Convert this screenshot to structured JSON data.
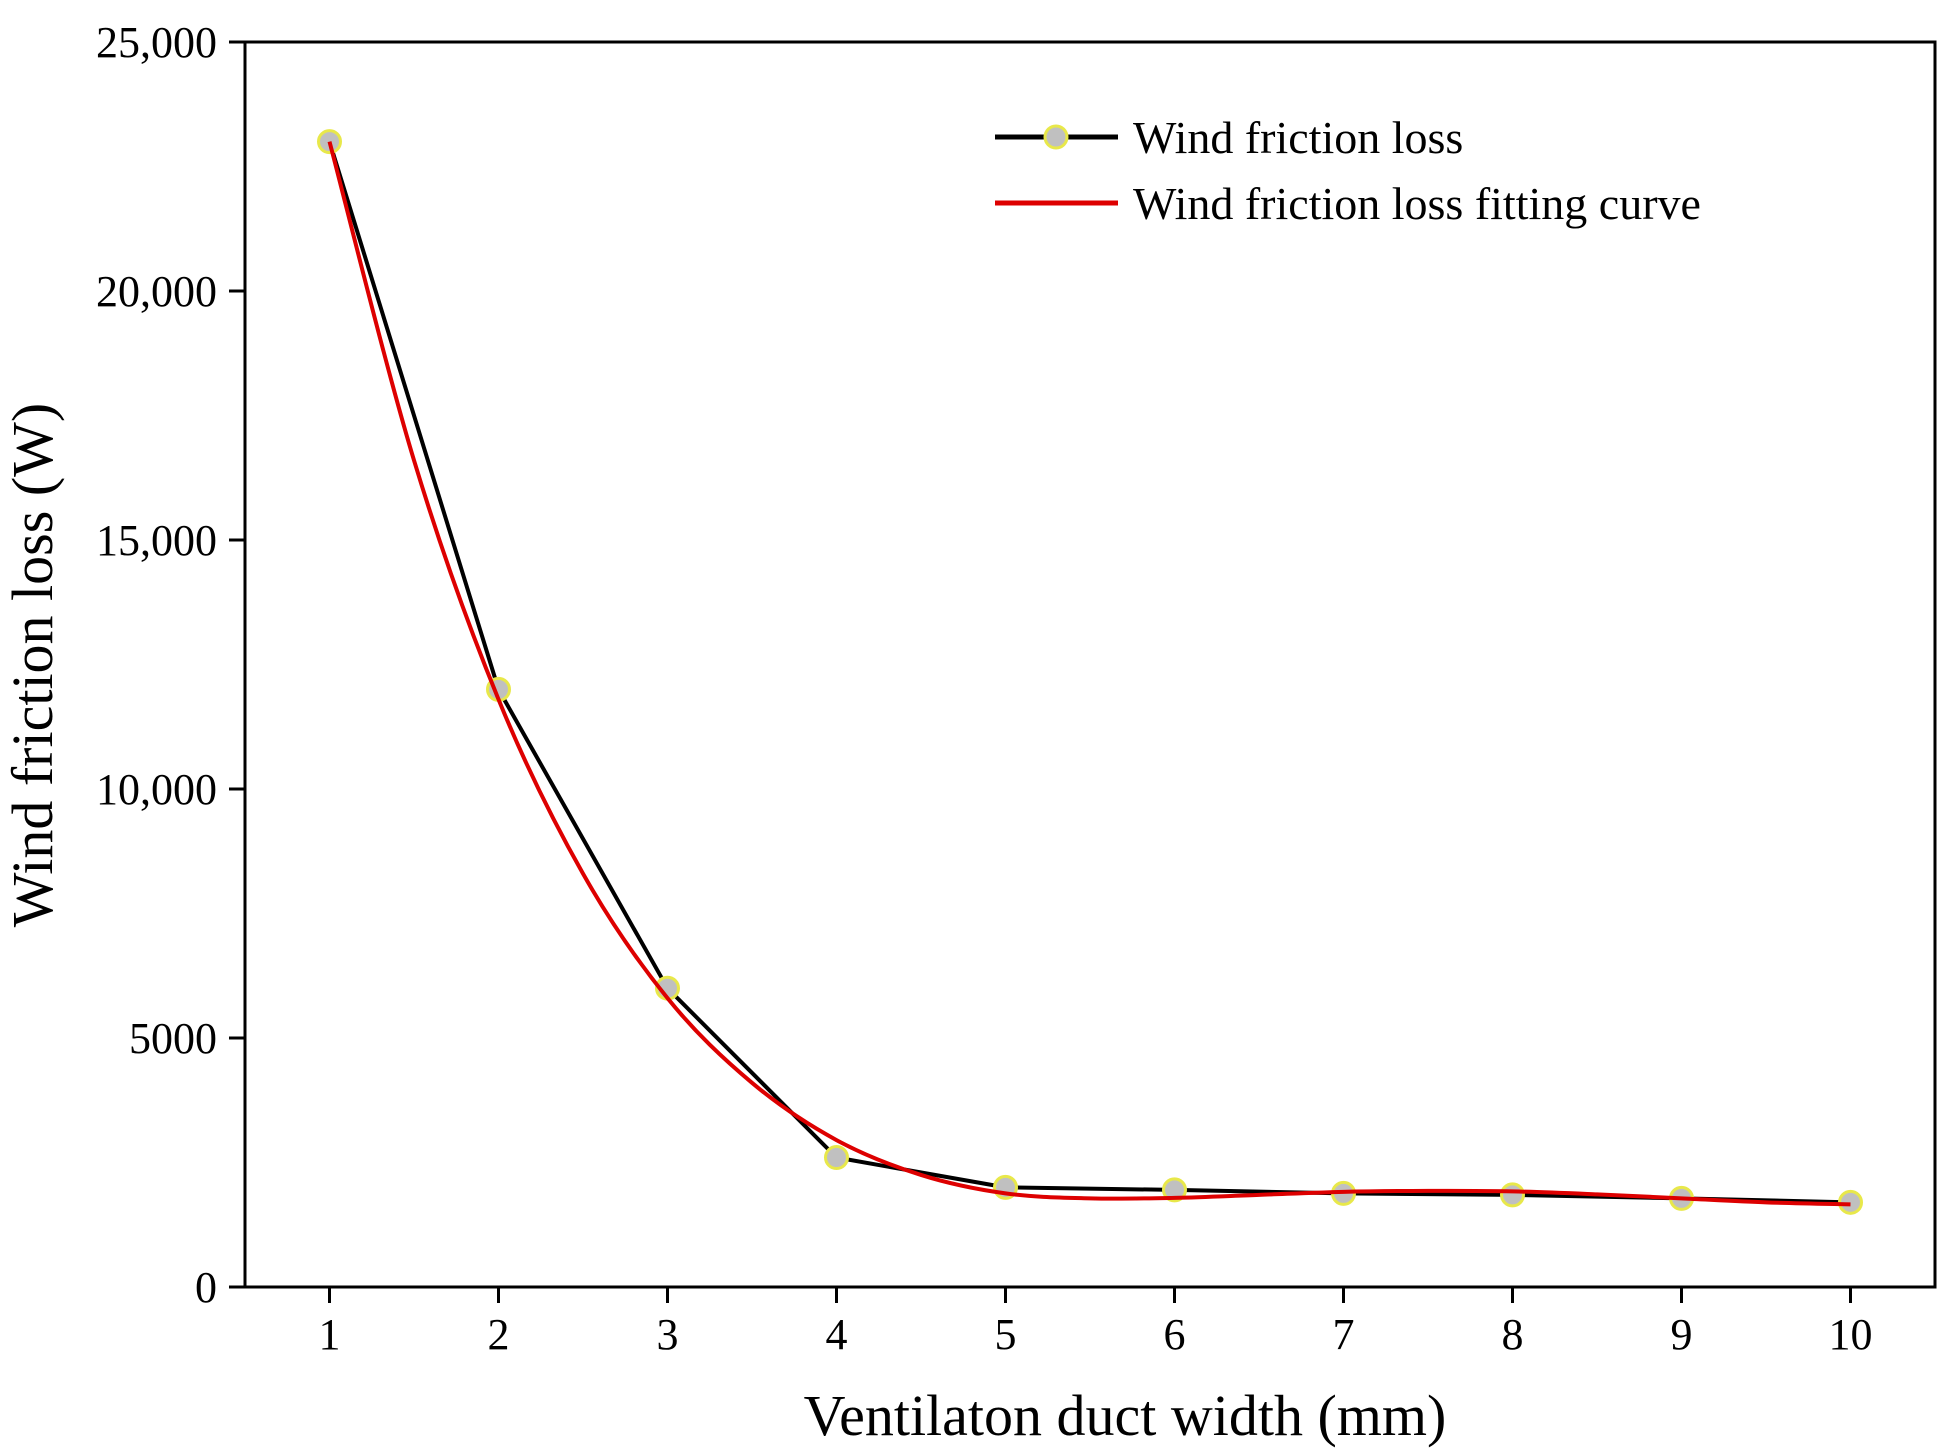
{
  "chart_data": {
    "type": "line",
    "title": "",
    "xlabel": "Ventilaton duct width (mm)",
    "ylabel": "Wind friction loss (W)",
    "xlim": [
      0.5,
      10.5
    ],
    "ylim": [
      0,
      25000
    ],
    "x_ticks": [
      1,
      2,
      3,
      4,
      5,
      6,
      7,
      8,
      9,
      10
    ],
    "x_tick_labels": [
      "1",
      "2",
      "3",
      "4",
      "5",
      "6",
      "7",
      "8",
      "9",
      "10"
    ],
    "y_ticks": [
      0,
      5000,
      10000,
      15000,
      20000,
      25000
    ],
    "y_tick_labels": [
      "0",
      "5000",
      "10,000",
      "15,000",
      "20,000",
      "25,000"
    ],
    "grid": false,
    "legend_position": "top-right",
    "series": [
      {
        "name": "Wind friction loss",
        "color": "#000000",
        "marker_fill": "#c0c0c0",
        "marker_edge": "#e8e84a",
        "x": [
          1,
          2,
          3,
          4,
          5,
          6,
          7,
          8,
          9,
          10
        ],
        "values": [
          23000,
          12000,
          6000,
          2600,
          2000,
          1950,
          1880,
          1850,
          1780,
          1700
        ]
      },
      {
        "name": "Wind friction loss fitting curve",
        "color": "#dd0000",
        "x": [
          1,
          1.5,
          2,
          2.5,
          3,
          3.5,
          4,
          4.5,
          5,
          5.5,
          6,
          6.5,
          7,
          7.5,
          8,
          8.5,
          9,
          9.5,
          10
        ],
        "values": [
          23000,
          16600,
          11800,
          8300,
          5800,
          4100,
          2950,
          2250,
          1880,
          1780,
          1790,
          1850,
          1910,
          1930,
          1920,
          1860,
          1780,
          1700,
          1660
        ]
      }
    ]
  }
}
